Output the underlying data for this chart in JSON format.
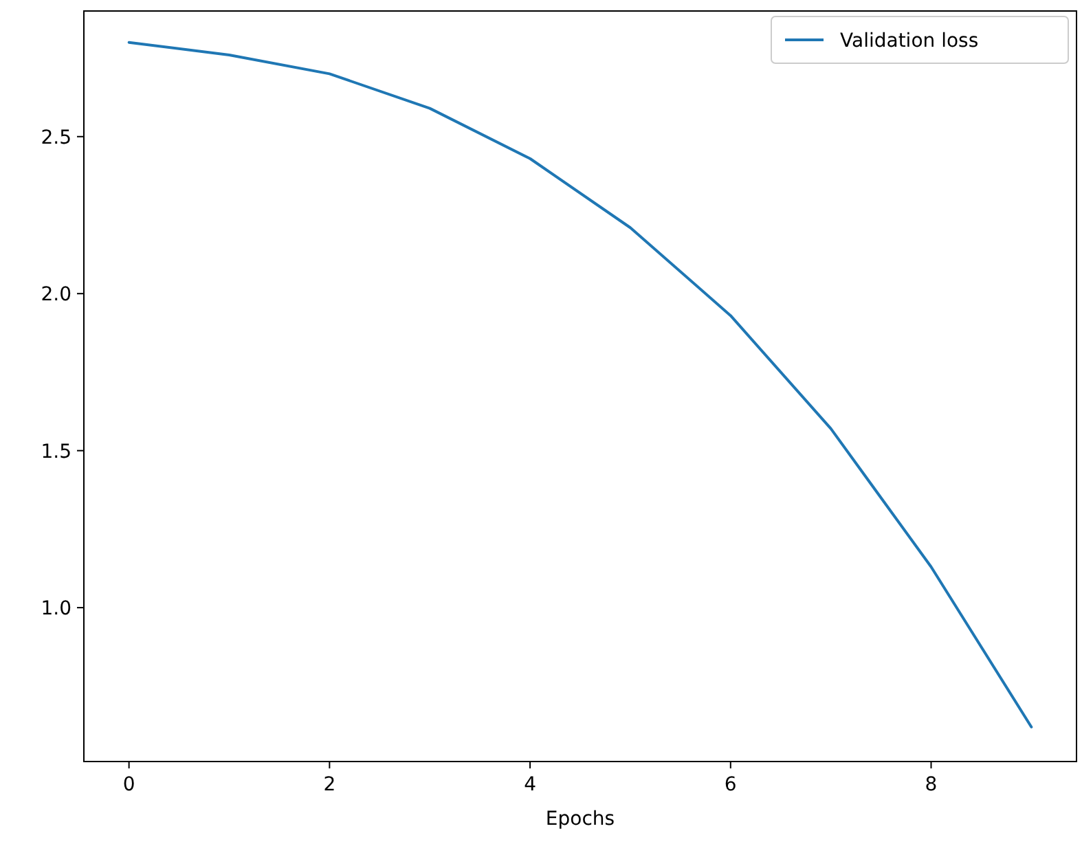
{
  "chart_data": {
    "type": "line",
    "xlabel": "Epochs",
    "x": [
      0,
      1,
      2,
      3,
      4,
      5,
      6,
      7,
      8,
      9
    ],
    "series": [
      {
        "name": "Validation loss",
        "color": "#1f77b4",
        "values": [
          2.8,
          2.76,
          2.7,
          2.59,
          2.43,
          2.21,
          1.93,
          1.57,
          1.13,
          0.62
        ]
      }
    ],
    "xlim": [
      -0.45,
      9.45
    ],
    "xticks": [
      0,
      2,
      4,
      6,
      8
    ],
    "ylim": [
      0.51,
      2.9
    ],
    "yticks": [
      {
        "value": 1.0,
        "label": "1.0"
      },
      {
        "value": 1.5,
        "label": "1.5"
      },
      {
        "value": 2.0,
        "label": "2.0"
      },
      {
        "value": 2.5,
        "label": "2.5"
      }
    ],
    "legend": "top right",
    "line_style": "solid",
    "marker": "none",
    "grid": false
  }
}
